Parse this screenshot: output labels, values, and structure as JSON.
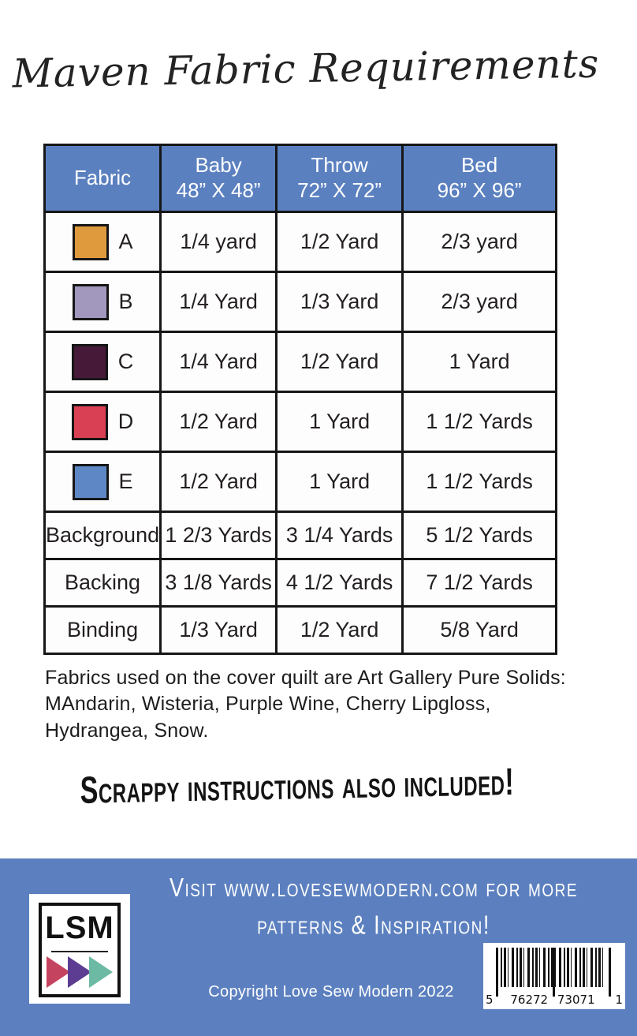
{
  "title": "Maven Fabric Requirements",
  "colors": {
    "header_blue": "#5b80c0",
    "footer_blue": "#5c80bf",
    "tri_pink": "#c4435f",
    "tri_purple": "#5c3d92",
    "tri_teal": "#6cbaa3"
  },
  "table": {
    "columns": [
      {
        "label": "Fabric",
        "size": ""
      },
      {
        "label": "Baby",
        "size": "48” X 48”"
      },
      {
        "label": "Throw",
        "size": "72” X 72”"
      },
      {
        "label": "Bed",
        "size": "96” X 96”"
      }
    ],
    "rows": [
      {
        "fabric": "A",
        "swatch": "#e09a3e",
        "baby": "1/4 yard",
        "throw": "1/2 Yard",
        "bed": "2/3 yard"
      },
      {
        "fabric": "B",
        "swatch": "#a298bd",
        "baby": "1/4 Yard",
        "throw": "1/3 Yard",
        "bed": "2/3 yard"
      },
      {
        "fabric": "C",
        "swatch": "#471939",
        "baby": "1/4 Yard",
        "throw": "1/2 Yard",
        "bed": "1 Yard"
      },
      {
        "fabric": "D",
        "swatch": "#d94054",
        "baby": "1/2 Yard",
        "throw": "1 Yard",
        "bed": "1 1/2 Yards"
      },
      {
        "fabric": "E",
        "swatch": "#5e87c5",
        "baby": "1/2 Yard",
        "throw": "1 Yard",
        "bed": "1 1/2 Yards"
      },
      {
        "fabric": "Background",
        "baby": "1 2/3 Yards",
        "throw": "3 1/4 Yards",
        "bed": "5 1/2 Yards"
      },
      {
        "fabric": "Backing",
        "baby": "3 1/8 Yards",
        "throw": "4 1/2 Yards",
        "bed": "7 1/2 Yards"
      },
      {
        "fabric": "Binding",
        "baby": "1/3 Yard",
        "throw": "1/2 Yard",
        "bed": "5/8 Yard"
      }
    ]
  },
  "notes": {
    "line1": "Fabrics used on the cover quilt are Art Gallery Pure Solids:",
    "line2": "MAndarin, Wisteria, Purple Wine, Cherry Lipgloss,",
    "line3": "Hydrangea, Snow."
  },
  "scrappy": "Scrappy instructions also included!",
  "footer": {
    "logo_text": "LSM",
    "visit_line1": "Visit www.lovesewmodern.com for more",
    "visit_line2": "patterns & Inspiration!",
    "copyright": "Copyright Love Sew Modern 2022",
    "barcode": {
      "lead": "5",
      "group1": "76272",
      "group2": "73071",
      "trail": "1"
    }
  }
}
